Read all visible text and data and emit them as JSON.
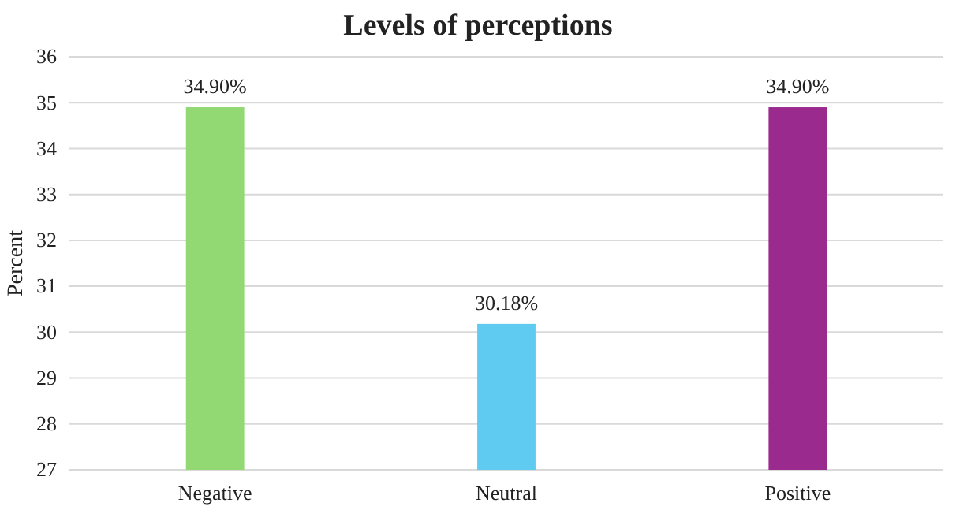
{
  "chart_data": {
    "type": "bar",
    "title": "Levels of perceptions",
    "ylabel": "Percent",
    "categories": [
      "Negative",
      "Neutral",
      "Positive"
    ],
    "values": [
      34.9,
      30.18,
      34.9
    ],
    "colors": [
      "#92d873",
      "#5fcbf0",
      "#9b2a8e"
    ],
    "value_labels": [
      "34.90%",
      "30.18%",
      "34.90%"
    ],
    "ylim": [
      27,
      36
    ],
    "yticks": [
      27,
      28,
      29,
      30,
      31,
      32,
      33,
      34,
      35,
      36
    ],
    "grid": "y"
  }
}
